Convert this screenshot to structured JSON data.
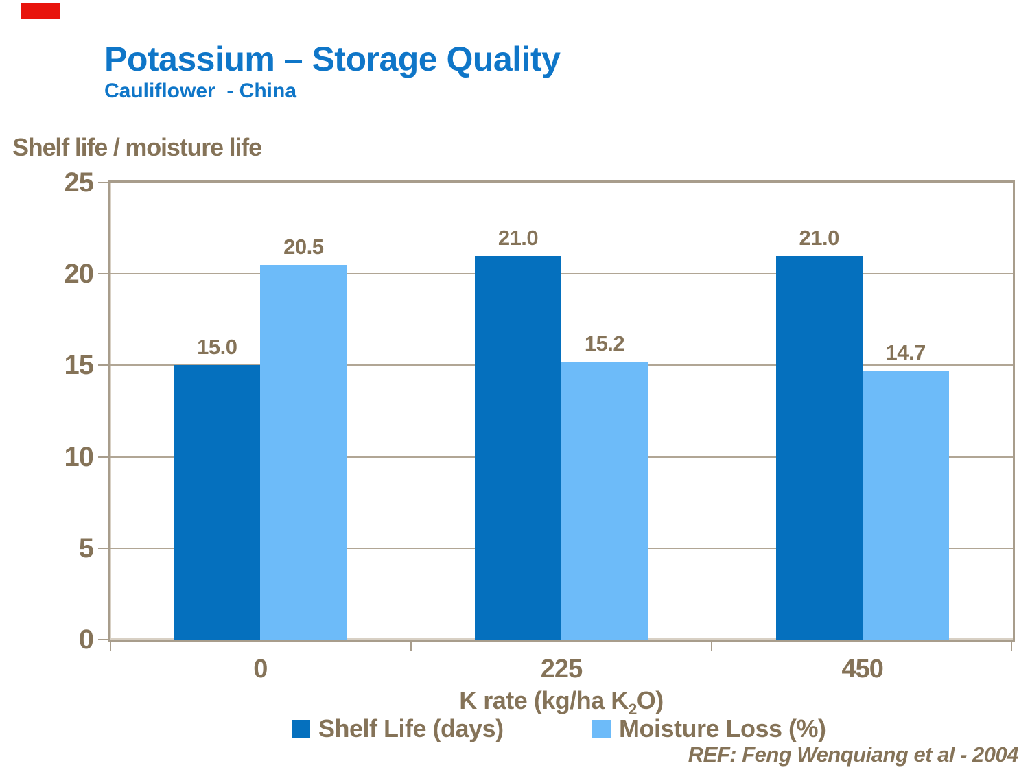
{
  "slide": {
    "title": "Potassium – Storage Quality",
    "subtitle": "Cauliflower  - China",
    "reference": "REF: Feng Wenquiang et al - 2004"
  },
  "colors": {
    "title_blue": "#0F76C8",
    "text_brown": "#857358",
    "series1_blue": "#0570BE",
    "series2_blue": "#6DBBF9",
    "frame_tan": "#A89D8C",
    "grid_tan": "#B1A695",
    "accent_red": "#E8140C"
  },
  "chart_data": {
    "type": "bar",
    "title": "Shelf life / moisture life",
    "ylabel": "Shelf life / moisture life",
    "xlabel": "K rate (kg/ha K2O)",
    "xlabel_parts": {
      "pre": "K rate (kg/ha K",
      "sub": "2",
      "post": "O)"
    },
    "categories": [
      "0",
      "225",
      "450"
    ],
    "series": [
      {
        "name": "Shelf Life (days)",
        "color_key": "series1_blue",
        "values": [
          15.0,
          21.0,
          21.0
        ],
        "labels": [
          "15.0",
          "21.0",
          "21.0"
        ]
      },
      {
        "name": "Moisture Loss (%)",
        "color_key": "series2_blue",
        "values": [
          20.5,
          15.2,
          14.7
        ],
        "labels": [
          "20.5",
          "15.2",
          "14.7"
        ]
      }
    ],
    "ylim": [
      0,
      25
    ],
    "ytick_step": 5,
    "yticks": [
      "0",
      "5",
      "10",
      "15",
      "20",
      "25"
    ],
    "grid": true,
    "legend_position": "bottom"
  }
}
